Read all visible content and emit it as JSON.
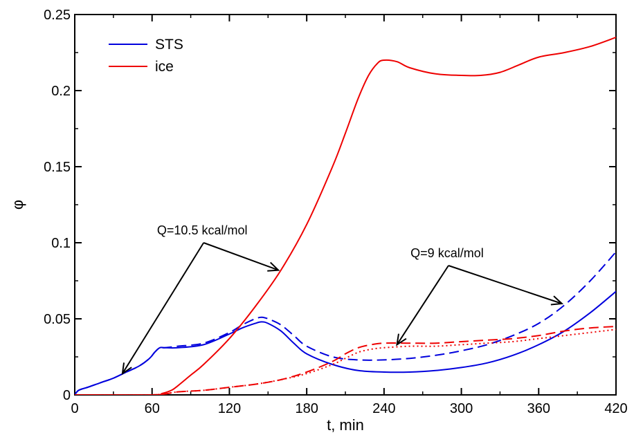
{
  "chart_data": {
    "type": "line",
    "xlabel": "t, min",
    "ylabel": "φ",
    "xlim": [
      0,
      420
    ],
    "ylim": [
      0,
      0.25
    ],
    "xticks": [
      0,
      60,
      120,
      180,
      240,
      300,
      360,
      420
    ],
    "yticks": [
      0,
      0.05,
      0.1,
      0.15,
      0.2,
      0.25
    ],
    "ytick_labels": [
      "0",
      "0.05",
      "0.1",
      "0.15",
      "0.2",
      "0.25"
    ],
    "legend": {
      "position": "top-left",
      "entries": [
        {
          "name": "STS",
          "color": "#0000dd"
        },
        {
          "name": "ice",
          "color": "#ee0000"
        }
      ]
    },
    "series": [
      {
        "name": "STS",
        "style": "solid",
        "color": "#0000dd",
        "x": [
          0,
          3,
          10,
          20,
          30,
          40,
          50,
          58,
          62,
          66,
          70,
          80,
          100,
          120,
          130,
          140,
          145,
          150,
          160,
          170,
          180,
          200,
          220,
          240,
          260,
          280,
          300,
          320,
          340,
          360,
          380,
          400,
          420
        ],
        "y": [
          0,
          0.003,
          0.005,
          0.008,
          0.011,
          0.015,
          0.019,
          0.024,
          0.028,
          0.031,
          0.031,
          0.031,
          0.033,
          0.04,
          0.044,
          0.047,
          0.048,
          0.047,
          0.042,
          0.034,
          0.027,
          0.02,
          0.016,
          0.015,
          0.015,
          0.016,
          0.018,
          0.021,
          0.026,
          0.033,
          0.042,
          0.054,
          0.068
        ]
      },
      {
        "name": "",
        "style": "dashed",
        "color": "#0000dd",
        "x": [
          0,
          3,
          10,
          20,
          30,
          40,
          50,
          58,
          62,
          66,
          70,
          80,
          100,
          120,
          130,
          140,
          145,
          150,
          160,
          170,
          180,
          200,
          220,
          240,
          260,
          280,
          300,
          320,
          340,
          360,
          380,
          400,
          420
        ],
        "y": [
          0,
          0.003,
          0.005,
          0.008,
          0.011,
          0.015,
          0.019,
          0.024,
          0.028,
          0.031,
          0.031,
          0.032,
          0.034,
          0.041,
          0.046,
          0.05,
          0.051,
          0.05,
          0.046,
          0.039,
          0.032,
          0.025,
          0.023,
          0.023,
          0.024,
          0.026,
          0.029,
          0.033,
          0.039,
          0.047,
          0.059,
          0.075,
          0.094
        ]
      },
      {
        "name": "ice",
        "style": "solid",
        "color": "#ee0000",
        "x": [
          0,
          60,
          68,
          75,
          80,
          90,
          100,
          120,
          140,
          160,
          180,
          200,
          210,
          220,
          228,
          235,
          240,
          250,
          260,
          280,
          300,
          315,
          330,
          345,
          360,
          380,
          400,
          420
        ],
        "y": [
          0,
          0,
          0.001,
          0.003,
          0.006,
          0.013,
          0.02,
          0.037,
          0.058,
          0.082,
          0.112,
          0.15,
          0.172,
          0.195,
          0.21,
          0.218,
          0.22,
          0.219,
          0.215,
          0.211,
          0.21,
          0.21,
          0.212,
          0.217,
          0.222,
          0.225,
          0.229,
          0.235
        ]
      },
      {
        "name": "",
        "style": "dashed",
        "color": "#ee0000",
        "x": [
          0,
          60,
          80,
          100,
          120,
          140,
          160,
          180,
          200,
          210,
          220,
          230,
          240,
          260,
          280,
          300,
          320,
          340,
          360,
          380,
          400,
          420
        ],
        "y": [
          0,
          0,
          0.002,
          0.003,
          0.005,
          0.007,
          0.01,
          0.015,
          0.022,
          0.027,
          0.031,
          0.033,
          0.034,
          0.034,
          0.034,
          0.035,
          0.036,
          0.037,
          0.039,
          0.042,
          0.044,
          0.045
        ]
      },
      {
        "name": "",
        "style": "dotted",
        "color": "#ee0000",
        "x": [
          0,
          60,
          80,
          100,
          120,
          140,
          160,
          180,
          200,
          210,
          220,
          230,
          240,
          260,
          280,
          300,
          320,
          340,
          360,
          380,
          400,
          420
        ],
        "y": [
          0,
          0,
          0.002,
          0.003,
          0.005,
          0.007,
          0.01,
          0.014,
          0.02,
          0.024,
          0.028,
          0.03,
          0.031,
          0.032,
          0.032,
          0.033,
          0.034,
          0.035,
          0.037,
          0.039,
          0.041,
          0.043
        ]
      }
    ],
    "annotations": [
      {
        "text": "Q=10.5 kcal/mol",
        "anchor": [
          100,
          0.1
        ],
        "targets": [
          [
            37,
            0.014
          ],
          [
            158,
            0.082
          ]
        ]
      },
      {
        "text": "Q=9 kcal/mol",
        "anchor": [
          290,
          0.085
        ],
        "targets": [
          [
            250,
            0.033
          ],
          [
            378,
            0.06
          ]
        ]
      }
    ],
    "grid": false
  }
}
